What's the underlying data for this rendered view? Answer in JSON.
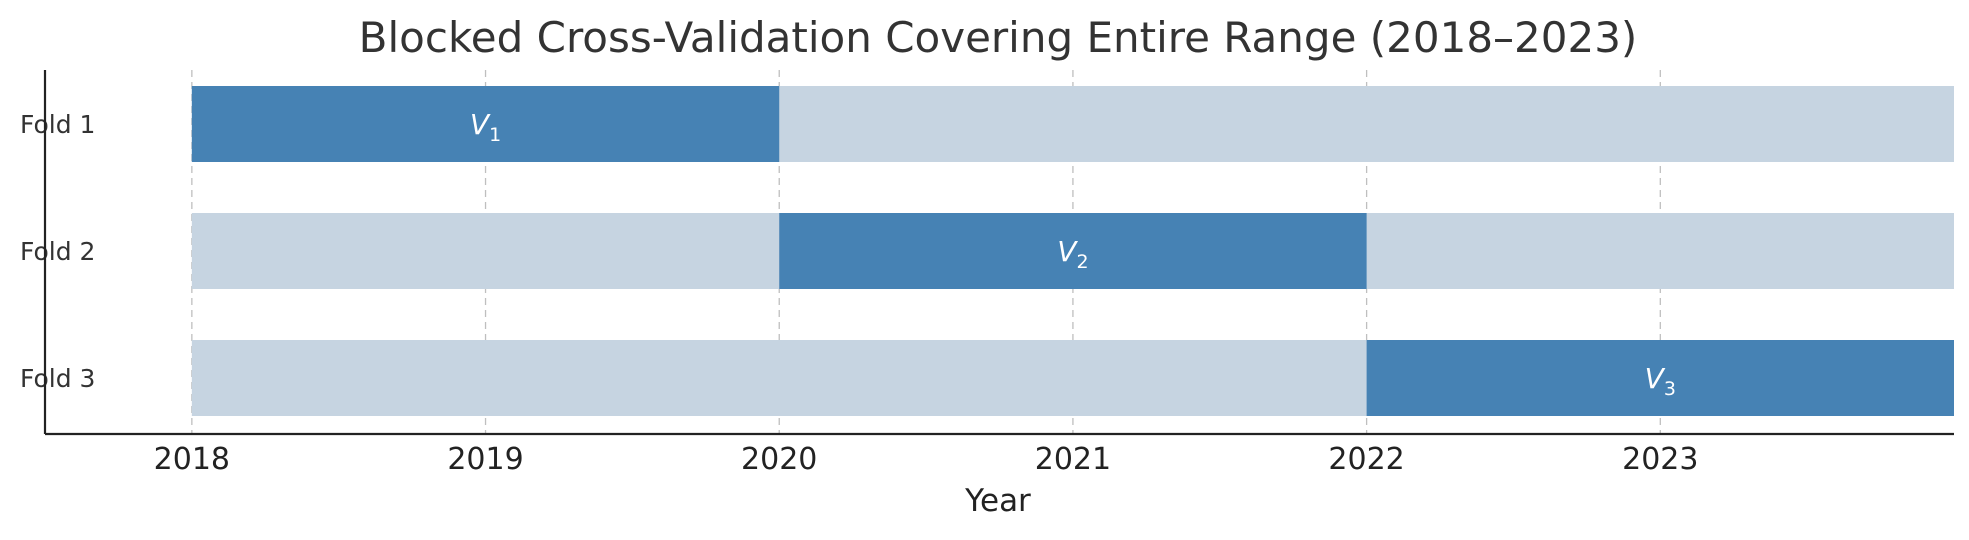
{
  "chart_data": {
    "type": "bar",
    "orientation": "horizontal-timeline",
    "title": "Blocked Cross-Validation Covering Entire Range (2018–2023)",
    "xlabel": "Year",
    "ylabel": "",
    "x_ticks": [
      "2018",
      "2019",
      "2020",
      "2021",
      "2022",
      "2023"
    ],
    "xlim": [
      2017.5,
      2024.0
    ],
    "grid": "x-dashed",
    "colors": {
      "validation": "#4682b4",
      "background": "#c6d4e1"
    },
    "folds": [
      {
        "label": "Fold 1",
        "span": [
          2018,
          2024
        ],
        "validation": [
          2018,
          2020
        ],
        "val_label": "V",
        "val_sub": "1"
      },
      {
        "label": "Fold 2",
        "span": [
          2018,
          2024
        ],
        "validation": [
          2020,
          2022
        ],
        "val_label": "V",
        "val_sub": "2"
      },
      {
        "label": "Fold 3",
        "span": [
          2018,
          2024
        ],
        "validation": [
          2022,
          2024
        ],
        "val_label": "V",
        "val_sub": "3"
      }
    ]
  }
}
